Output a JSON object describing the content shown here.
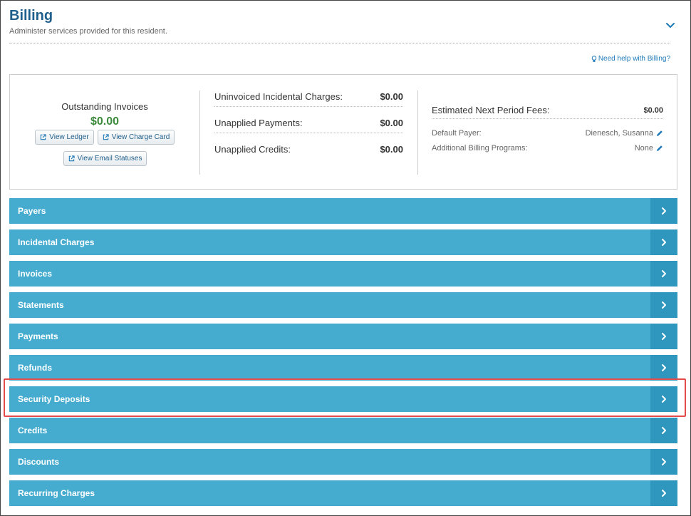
{
  "header": {
    "title": "Billing",
    "subtitle": "Administer services provided for this resident.",
    "help_link": "Need help with Billing?"
  },
  "summary": {
    "outstanding": {
      "label": "Outstanding Invoices",
      "amount": "$0.00",
      "buttons": {
        "view_ledger": "View Ledger",
        "view_charge_card": "View Charge Card",
        "view_email_statuses": "View Email Statuses"
      }
    },
    "middle": [
      {
        "label": "Uninvoiced Incidental Charges:",
        "amount": "$0.00"
      },
      {
        "label": "Unapplied Payments:",
        "amount": "$0.00"
      },
      {
        "label": "Unapplied Credits:",
        "amount": "$0.00"
      }
    ],
    "right": {
      "estimated_label": "Estimated Next Period Fees:",
      "estimated_amount": "$0.00",
      "default_payer_label": "Default Payer:",
      "default_payer_value": "Dienesch, Susanna",
      "additional_programs_label": "Additional Billing Programs:",
      "additional_programs_value": "None"
    }
  },
  "sections": [
    {
      "label": "Payers"
    },
    {
      "label": "Incidental Charges"
    },
    {
      "label": "Invoices"
    },
    {
      "label": "Statements"
    },
    {
      "label": "Payments"
    },
    {
      "label": "Refunds"
    },
    {
      "label": "Security Deposits"
    },
    {
      "label": "Credits"
    },
    {
      "label": "Discounts"
    },
    {
      "label": "Recurring Charges"
    }
  ],
  "icons": {
    "collapse": "chevron-down-icon",
    "help": "lightbulb-icon",
    "external": "external-link-icon",
    "edit": "pencil-icon",
    "section": "chevron-right-icon"
  },
  "colors": {
    "title": "#1f5f8b",
    "amount_green": "#3c8a3c",
    "section_bar": "#45acd0",
    "section_chevron_bg": "#2f97be",
    "highlight": "#e44b4b"
  }
}
